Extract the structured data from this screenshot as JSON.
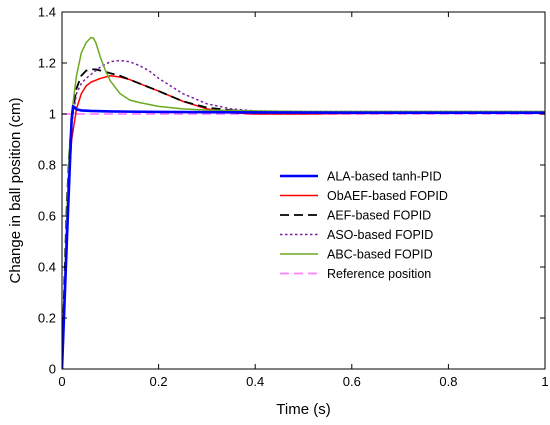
{
  "chart_data": {
    "type": "line",
    "title": "",
    "xlabel": "Time (s)",
    "ylabel": "Change in ball position (cm)",
    "xlim": [
      0,
      1
    ],
    "ylim": [
      0,
      1.4
    ],
    "xticks": [
      0,
      0.2,
      0.4,
      0.6,
      0.8,
      1
    ],
    "xtick_labels": [
      "0",
      "0.2",
      "0.4",
      "0.6",
      "0.8",
      "1"
    ],
    "yticks": [
      0,
      0.2,
      0.4,
      0.6,
      0.8,
      1,
      1.2,
      1.4
    ],
    "ytick_labels": [
      "0",
      "0.2",
      "0.4",
      "0.6",
      "0.8",
      "1",
      "1.2",
      "1.4"
    ],
    "grid": false,
    "legend_position": "center-right",
    "series": [
      {
        "name": "ALA-based tanh-PID",
        "color": "#0000ff",
        "style": "solid-thick",
        "x": [
          0,
          0.01,
          0.02,
          0.023,
          0.027,
          0.03,
          0.04,
          0.06,
          0.1,
          0.2,
          0.4,
          0.6,
          0.8,
          1.0
        ],
        "y": [
          0,
          0.5,
          0.98,
          1.03,
          1.025,
          1.018,
          1.014,
          1.012,
          1.01,
          1.008,
          1.006,
          1.005,
          1.005,
          1.005
        ]
      },
      {
        "name": "ObAEF-based FOPID",
        "color": "#ff0000",
        "style": "solid",
        "x": [
          0,
          0.005,
          0.01,
          0.015,
          0.02,
          0.03,
          0.04,
          0.05,
          0.06,
          0.08,
          0.1,
          0.12,
          0.14,
          0.16,
          0.2,
          0.25,
          0.3,
          0.35,
          0.4,
          0.5,
          0.6,
          0.8,
          1.0
        ],
        "y": [
          0,
          0.3,
          0.55,
          0.75,
          0.9,
          1.02,
          1.08,
          1.11,
          1.125,
          1.14,
          1.15,
          1.145,
          1.135,
          1.12,
          1.09,
          1.05,
          1.02,
          1.005,
          1.0,
          1.0,
          1.002,
          1.003,
          1.003
        ]
      },
      {
        "name": "AEF-based FOPID",
        "color": "#000000",
        "style": "dashed",
        "x": [
          0,
          0.005,
          0.01,
          0.015,
          0.02,
          0.03,
          0.04,
          0.05,
          0.06,
          0.07,
          0.08,
          0.1,
          0.12,
          0.14,
          0.16,
          0.2,
          0.25,
          0.3,
          0.35,
          0.4,
          0.5,
          0.6,
          0.8,
          1.0
        ],
        "y": [
          0,
          0.35,
          0.65,
          0.85,
          0.98,
          1.1,
          1.15,
          1.17,
          1.175,
          1.175,
          1.17,
          1.16,
          1.15,
          1.135,
          1.12,
          1.09,
          1.05,
          1.025,
          1.015,
          1.01,
          1.008,
          1.007,
          1.006,
          1.006
        ]
      },
      {
        "name": "ASO-based FOPID",
        "color": "#7b1fa2",
        "style": "dotted",
        "x": [
          0,
          0.005,
          0.01,
          0.015,
          0.02,
          0.03,
          0.04,
          0.05,
          0.06,
          0.07,
          0.08,
          0.1,
          0.12,
          0.14,
          0.16,
          0.18,
          0.2,
          0.25,
          0.3,
          0.35,
          0.4,
          0.5,
          0.6,
          0.8,
          1.0
        ],
        "y": [
          0,
          0.3,
          0.6,
          0.82,
          0.96,
          1.08,
          1.12,
          1.14,
          1.155,
          1.17,
          1.185,
          1.205,
          1.21,
          1.205,
          1.19,
          1.17,
          1.14,
          1.08,
          1.04,
          1.02,
          1.012,
          1.01,
          1.01,
          1.01,
          1.01
        ]
      },
      {
        "name": "ABC-based FOPID",
        "color": "#6aaa1e",
        "style": "solid",
        "x": [
          0,
          0.005,
          0.01,
          0.015,
          0.02,
          0.03,
          0.04,
          0.05,
          0.06,
          0.065,
          0.07,
          0.08,
          0.09,
          0.1,
          0.12,
          0.14,
          0.16,
          0.2,
          0.25,
          0.3,
          0.4,
          0.5,
          0.6,
          0.8,
          1.0
        ],
        "y": [
          0,
          0.3,
          0.6,
          0.85,
          1.0,
          1.15,
          1.24,
          1.28,
          1.3,
          1.298,
          1.28,
          1.22,
          1.17,
          1.13,
          1.08,
          1.055,
          1.045,
          1.03,
          1.02,
          1.015,
          1.012,
          1.01,
          1.01,
          1.01,
          1.01
        ]
      },
      {
        "name": "Reference position",
        "color": "#ff80ff",
        "style": "dashed",
        "x": [
          0,
          1
        ],
        "y": [
          1,
          1
        ]
      }
    ]
  }
}
